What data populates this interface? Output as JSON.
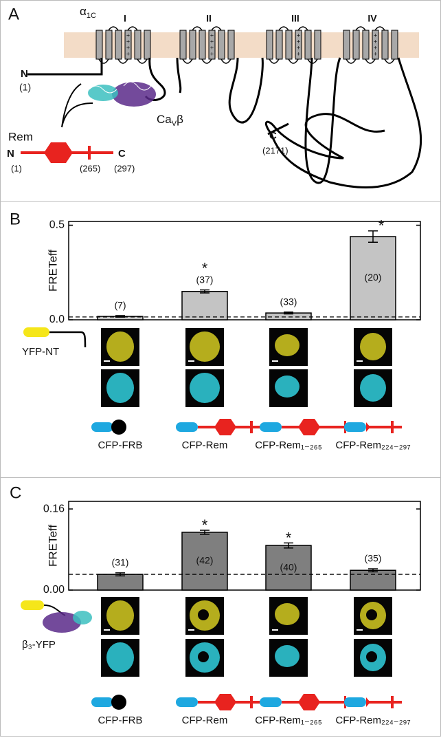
{
  "panel_a": {
    "label": "A",
    "alpha": {
      "base": "α",
      "sub": "1C"
    },
    "domains": [
      "I",
      "II",
      "III",
      "IV"
    ],
    "n_term": "N",
    "n_pos": "(1)",
    "beta": {
      "base": "Ca",
      "sub": "V",
      "tail": "β"
    },
    "rem": "Rem",
    "rem_n": "N",
    "rem_c": "C",
    "rem_pos": [
      "(1)",
      "(265)",
      "(297)"
    ],
    "c_term": "C",
    "c_pos": "(2171)"
  },
  "constructs": {
    "b": "YFP-NT",
    "c": "β₃-YFP"
  },
  "chart_data": [
    {
      "type": "bar",
      "panel": "B",
      "y_label": "FRETeff",
      "color": "#c4c4c4",
      "categories": [
        "CFP-FRB",
        "CFP-Rem",
        "CFP-Rem₁₋₂₆₅",
        "CFP-Rem₂₂₄₋₂₉₇"
      ],
      "values": [
        0.018,
        0.15,
        0.036,
        0.44
      ],
      "errors": [
        0.004,
        0.008,
        0.005,
        0.03
      ],
      "n_labels": [
        "(7)",
        "(37)",
        "(33)",
        "(20)"
      ],
      "asterisk": "*",
      "significant": [
        false,
        true,
        false,
        true
      ],
      "baseline": 0.015,
      "ylim": [
        0,
        0.52
      ],
      "yticks": [
        {
          "value": 0,
          "label": "0.0"
        },
        0.5
      ]
    },
    {
      "type": "bar",
      "panel": "C",
      "y_label": "FRETeff",
      "color": "#7f7f7f",
      "categories": [
        "CFP-FRB",
        "CFP-Rem",
        "CFP-Rem₁₋₂₆₅",
        "CFP-Rem₂₂₄₋₂₉₇"
      ],
      "values": [
        0.031,
        0.114,
        0.088,
        0.039
      ],
      "errors": [
        0.003,
        0.004,
        0.005,
        0.003
      ],
      "n_labels": [
        "(31)",
        "(42)",
        "(40)",
        "(35)"
      ],
      "asterisk": "*",
      "significant": [
        false,
        true,
        true,
        false
      ],
      "baseline": 0.031,
      "ylim": [
        0,
        0.175
      ],
      "yticks": [
        {
          "value": 0,
          "label": "0.00"
        },
        0.16
      ]
    }
  ]
}
